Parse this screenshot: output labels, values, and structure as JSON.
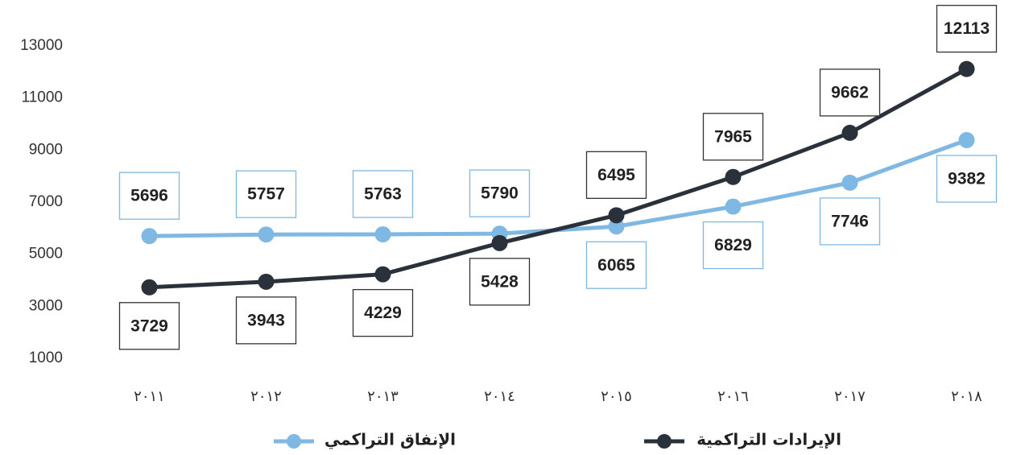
{
  "chart_data": {
    "type": "line",
    "categories": [
      "٢٠١١",
      "٢٠١٢",
      "٢٠١٣",
      "٢٠١٤",
      "٢٠١٥",
      "٢٠١٦",
      "٢٠١٧",
      "٢٠١٨"
    ],
    "series": [
      {
        "name": "الإنفاق التراكمي",
        "color": "#7fb8e3",
        "values": [
          5696,
          5757,
          5763,
          5790,
          6065,
          6829,
          7746,
          9382
        ]
      },
      {
        "name": "الإيرادات التراكمية",
        "color": "#2b313b",
        "values": [
          3729,
          3943,
          4229,
          5428,
          6495,
          7965,
          9662,
          12113
        ]
      }
    ],
    "ylim": [
      1000,
      13000
    ],
    "yticks": [
      1000,
      3000,
      5000,
      7000,
      9000,
      11000,
      13000
    ],
    "grid": false,
    "legend": "bottom"
  }
}
